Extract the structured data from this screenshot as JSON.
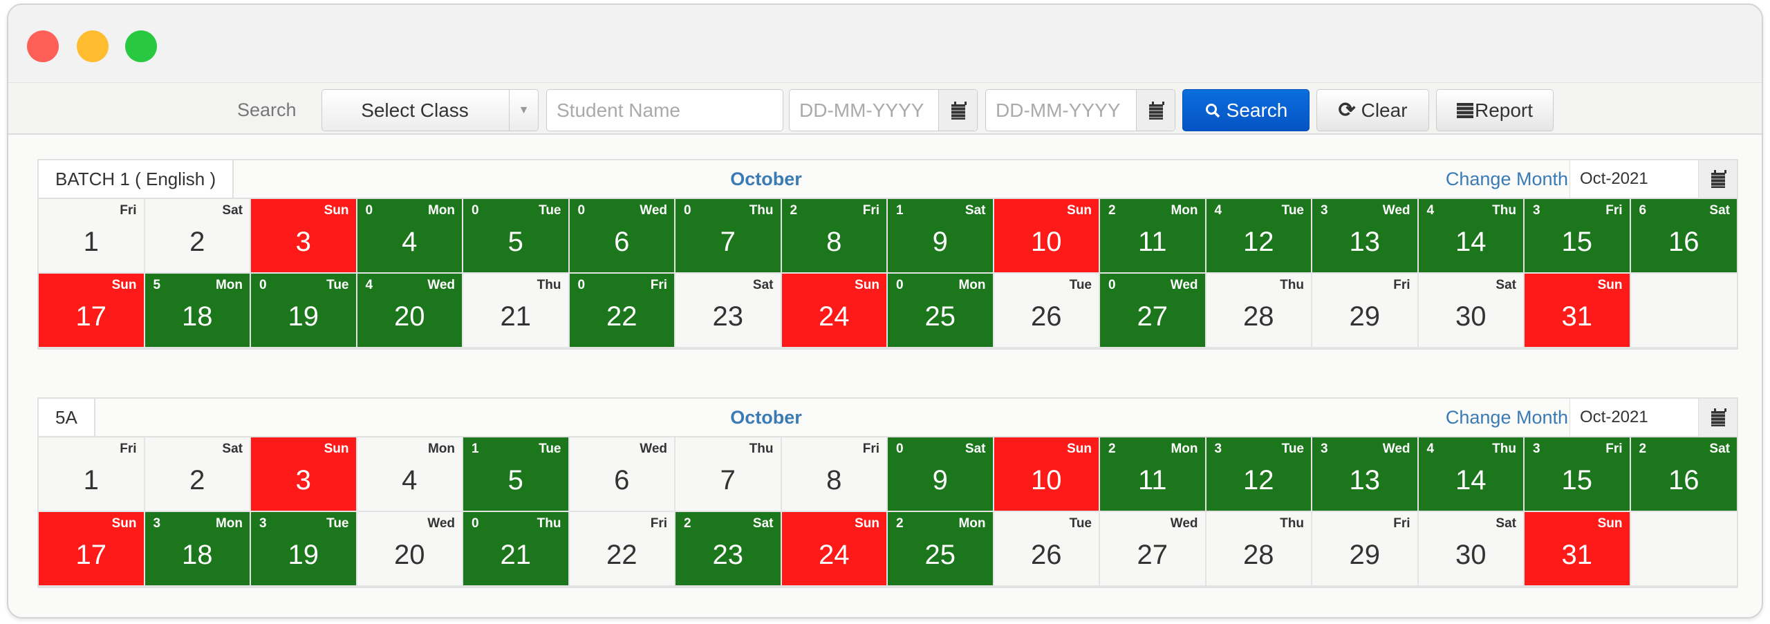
{
  "window": {
    "controls": [
      {
        "name": "close",
        "color": "#fe5f57"
      },
      {
        "name": "minimize",
        "color": "#febc2e"
      },
      {
        "name": "maximize",
        "color": "#28c840"
      }
    ]
  },
  "toolbar": {
    "search_label": "Search",
    "class_select": "Select Class",
    "student_placeholder": "Student Name",
    "from_date_placeholder": "DD-MM-YYYY",
    "to_date_placeholder": "DD-MM-YYYY",
    "search_button": "Search",
    "clear_button": "Clear",
    "report_button": "Report"
  },
  "colors": {
    "present": "#1c761c",
    "holiday": "#ff1a1a",
    "none": "#f7f7f6",
    "accent": "#3b7bb3",
    "primary": "#0a62d2"
  },
  "calendars": [
    {
      "name": "BATCH 1 ( English )",
      "month": "October",
      "change_month": "Change Month",
      "month_value": "Oct-2021",
      "days": [
        {
          "d": "1",
          "w": "Fri",
          "s": "none"
        },
        {
          "d": "2",
          "w": "Sat",
          "s": "none"
        },
        {
          "d": "3",
          "w": "Sun",
          "s": "holiday"
        },
        {
          "d": "4",
          "w": "Mon",
          "s": "present",
          "c": "0"
        },
        {
          "d": "5",
          "w": "Tue",
          "s": "present",
          "c": "0"
        },
        {
          "d": "6",
          "w": "Wed",
          "s": "present",
          "c": "0"
        },
        {
          "d": "7",
          "w": "Thu",
          "s": "present",
          "c": "0"
        },
        {
          "d": "8",
          "w": "Fri",
          "s": "present",
          "c": "2"
        },
        {
          "d": "9",
          "w": "Sat",
          "s": "present",
          "c": "1"
        },
        {
          "d": "10",
          "w": "Sun",
          "s": "holiday"
        },
        {
          "d": "11",
          "w": "Mon",
          "s": "present",
          "c": "2"
        },
        {
          "d": "12",
          "w": "Tue",
          "s": "present",
          "c": "4"
        },
        {
          "d": "13",
          "w": "Wed",
          "s": "present",
          "c": "3"
        },
        {
          "d": "14",
          "w": "Thu",
          "s": "present",
          "c": "4"
        },
        {
          "d": "15",
          "w": "Fri",
          "s": "present",
          "c": "3"
        },
        {
          "d": "16",
          "w": "Sat",
          "s": "present",
          "c": "6"
        },
        {
          "d": "17",
          "w": "Sun",
          "s": "holiday"
        },
        {
          "d": "18",
          "w": "Mon",
          "s": "present",
          "c": "5"
        },
        {
          "d": "19",
          "w": "Tue",
          "s": "present",
          "c": "0"
        },
        {
          "d": "20",
          "w": "Wed",
          "s": "present",
          "c": "4"
        },
        {
          "d": "21",
          "w": "Thu",
          "s": "none"
        },
        {
          "d": "22",
          "w": "Fri",
          "s": "present",
          "c": "0"
        },
        {
          "d": "23",
          "w": "Sat",
          "s": "none"
        },
        {
          "d": "24",
          "w": "Sun",
          "s": "holiday"
        },
        {
          "d": "25",
          "w": "Mon",
          "s": "present",
          "c": "0"
        },
        {
          "d": "26",
          "w": "Tue",
          "s": "none"
        },
        {
          "d": "27",
          "w": "Wed",
          "s": "present",
          "c": "0"
        },
        {
          "d": "28",
          "w": "Thu",
          "s": "none"
        },
        {
          "d": "29",
          "w": "Fri",
          "s": "none"
        },
        {
          "d": "30",
          "w": "Sat",
          "s": "none"
        },
        {
          "d": "31",
          "w": "Sun",
          "s": "holiday"
        }
      ]
    },
    {
      "name": "5A",
      "month": "October",
      "change_month": "Change Month",
      "month_value": "Oct-2021",
      "days": [
        {
          "d": "1",
          "w": "Fri",
          "s": "none"
        },
        {
          "d": "2",
          "w": "Sat",
          "s": "none"
        },
        {
          "d": "3",
          "w": "Sun",
          "s": "holiday"
        },
        {
          "d": "4",
          "w": "Mon",
          "s": "none"
        },
        {
          "d": "5",
          "w": "Tue",
          "s": "present",
          "c": "1"
        },
        {
          "d": "6",
          "w": "Wed",
          "s": "none"
        },
        {
          "d": "7",
          "w": "Thu",
          "s": "none"
        },
        {
          "d": "8",
          "w": "Fri",
          "s": "none"
        },
        {
          "d": "9",
          "w": "Sat",
          "s": "present",
          "c": "0"
        },
        {
          "d": "10",
          "w": "Sun",
          "s": "holiday"
        },
        {
          "d": "11",
          "w": "Mon",
          "s": "present",
          "c": "2"
        },
        {
          "d": "12",
          "w": "Tue",
          "s": "present",
          "c": "3"
        },
        {
          "d": "13",
          "w": "Wed",
          "s": "present",
          "c": "3"
        },
        {
          "d": "14",
          "w": "Thu",
          "s": "present",
          "c": "4"
        },
        {
          "d": "15",
          "w": "Fri",
          "s": "present",
          "c": "3"
        },
        {
          "d": "16",
          "w": "Sat",
          "s": "present",
          "c": "2"
        },
        {
          "d": "17",
          "w": "Sun",
          "s": "holiday"
        },
        {
          "d": "18",
          "w": "Mon",
          "s": "present",
          "c": "3"
        },
        {
          "d": "19",
          "w": "Tue",
          "s": "present",
          "c": "3"
        },
        {
          "d": "20",
          "w": "Wed",
          "s": "none"
        },
        {
          "d": "21",
          "w": "Thu",
          "s": "present",
          "c": "0"
        },
        {
          "d": "22",
          "w": "Fri",
          "s": "none"
        },
        {
          "d": "23",
          "w": "Sat",
          "s": "present",
          "c": "2"
        },
        {
          "d": "24",
          "w": "Sun",
          "s": "holiday"
        },
        {
          "d": "25",
          "w": "Mon",
          "s": "present",
          "c": "2"
        },
        {
          "d": "26",
          "w": "Tue",
          "s": "none"
        },
        {
          "d": "27",
          "w": "Wed",
          "s": "none"
        },
        {
          "d": "28",
          "w": "Thu",
          "s": "none"
        },
        {
          "d": "29",
          "w": "Fri",
          "s": "none"
        },
        {
          "d": "30",
          "w": "Sat",
          "s": "none"
        },
        {
          "d": "31",
          "w": "Sun",
          "s": "holiday"
        }
      ]
    }
  ]
}
